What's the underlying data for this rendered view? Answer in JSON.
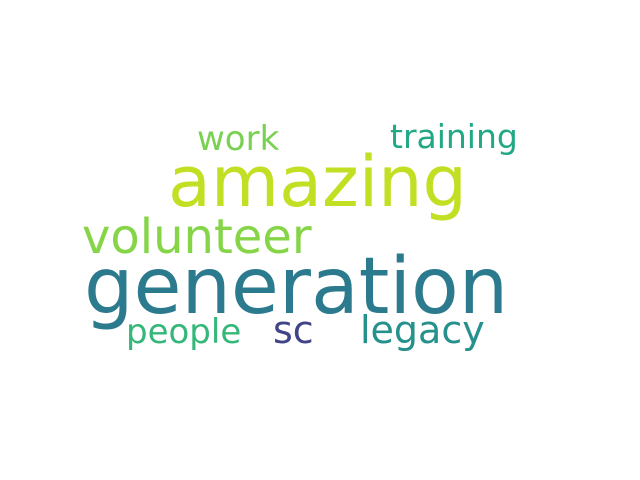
{
  "word_cloud": {
    "words": [
      {
        "text": "generation",
        "color": "#2c7a8e"
      },
      {
        "text": "amazing",
        "color": "#c2df23"
      },
      {
        "text": "volunteer",
        "color": "#86d549"
      },
      {
        "text": "work",
        "color": "#7ad151"
      },
      {
        "text": "training",
        "color": "#22a884"
      },
      {
        "text": "people",
        "color": "#35b779"
      },
      {
        "text": "sc",
        "color": "#414487"
      },
      {
        "text": "legacy",
        "color": "#26908d"
      }
    ]
  }
}
